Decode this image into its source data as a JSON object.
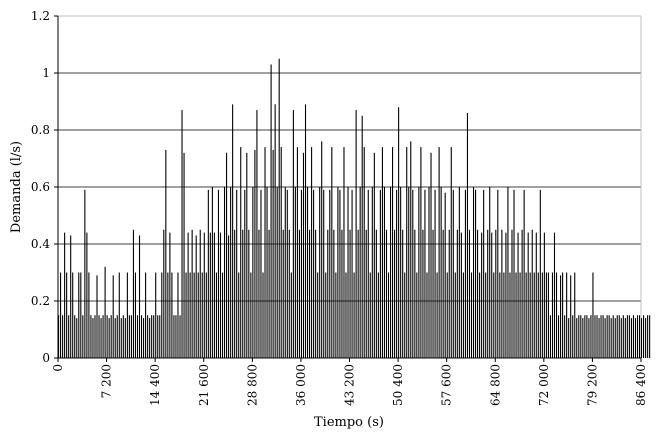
{
  "chart_data": {
    "type": "bar",
    "title": "",
    "xlabel": "Tiempo (s)",
    "ylabel": "Demanda (l/s)",
    "xlim": [
      0,
      86400
    ],
    "ylim": [
      0,
      1.2
    ],
    "grid": "horizontal",
    "x_ticks": [
      0,
      7200,
      14400,
      21600,
      28800,
      36000,
      43200,
      50400,
      57600,
      64800,
      72000,
      79200,
      86400
    ],
    "x_tick_labels": [
      "0",
      "7 200",
      "14 400",
      "21 600",
      "28 800",
      "36 000",
      "43 200",
      "50 400",
      "57 600",
      "64 800",
      "72 000",
      "79 200",
      "86 400"
    ],
    "y_ticks": [
      0,
      0.2,
      0.4,
      0.6,
      0.8,
      1,
      1.2
    ],
    "y_tick_labels": [
      "0",
      "0.2",
      "0.4",
      "0.6",
      "0.8",
      "1",
      "1.2"
    ],
    "bar_color": "#000000",
    "x_step_s": 300,
    "values": [
      0.15,
      0.3,
      0.15,
      0.44,
      0.3,
      0.15,
      0.43,
      0.3,
      0.15,
      0.14,
      0.3,
      0.3,
      0.15,
      0.59,
      0.44,
      0.3,
      0.15,
      0.14,
      0.15,
      0.29,
      0.15,
      0.14,
      0.15,
      0.32,
      0.15,
      0.14,
      0.15,
      0.29,
      0.14,
      0.15,
      0.3,
      0.14,
      0.15,
      0.14,
      0.3,
      0.15,
      0.15,
      0.45,
      0.3,
      0.15,
      0.43,
      0.15,
      0.14,
      0.3,
      0.15,
      0.14,
      0.15,
      0.15,
      0.3,
      0.15,
      0.15,
      0.3,
      0.45,
      0.73,
      0.3,
      0.44,
      0.3,
      0.15,
      0.15,
      0.3,
      0.15,
      0.87,
      0.72,
      0.3,
      0.44,
      0.3,
      0.45,
      0.3,
      0.43,
      0.3,
      0.45,
      0.3,
      0.44,
      0.3,
      0.59,
      0.44,
      0.6,
      0.44,
      0.3,
      0.59,
      0.44,
      0.3,
      0.6,
      0.72,
      0.43,
      0.6,
      0.89,
      0.45,
      0.59,
      0.3,
      0.74,
      0.45,
      0.59,
      0.72,
      0.45,
      0.3,
      0.6,
      0.73,
      0.87,
      0.45,
      0.59,
      0.3,
      0.74,
      0.6,
      0.45,
      1.03,
      0.73,
      0.89,
      0.6,
      1.05,
      0.74,
      0.45,
      0.6,
      0.59,
      0.45,
      0.3,
      0.87,
      0.6,
      0.74,
      0.45,
      0.59,
      0.72,
      0.89,
      0.6,
      0.45,
      0.74,
      0.59,
      0.45,
      0.3,
      0.6,
      0.76,
      0.59,
      0.3,
      0.45,
      0.59,
      0.74,
      0.45,
      0.3,
      0.6,
      0.59,
      0.45,
      0.74,
      0.3,
      0.6,
      0.45,
      0.59,
      0.3,
      0.87,
      0.45,
      0.6,
      0.85,
      0.74,
      0.45,
      0.59,
      0.3,
      0.6,
      0.72,
      0.45,
      0.3,
      0.59,
      0.74,
      0.6,
      0.45,
      0.3,
      0.6,
      0.74,
      0.45,
      0.59,
      0.88,
      0.6,
      0.45,
      0.3,
      0.74,
      0.6,
      0.76,
      0.59,
      0.45,
      0.3,
      0.6,
      0.74,
      0.45,
      0.59,
      0.3,
      0.6,
      0.72,
      0.45,
      0.59,
      0.3,
      0.74,
      0.6,
      0.45,
      0.58,
      0.3,
      0.45,
      0.74,
      0.59,
      0.3,
      0.45,
      0.6,
      0.44,
      0.3,
      0.59,
      0.86,
      0.45,
      0.3,
      0.6,
      0.59,
      0.45,
      0.3,
      0.44,
      0.59,
      0.3,
      0.45,
      0.6,
      0.44,
      0.3,
      0.45,
      0.59,
      0.3,
      0.45,
      0.3,
      0.44,
      0.6,
      0.3,
      0.45,
      0.59,
      0.3,
      0.44,
      0.3,
      0.45,
      0.59,
      0.3,
      0.44,
      0.3,
      0.45,
      0.3,
      0.44,
      0.3,
      0.59,
      0.3,
      0.44,
      0.3,
      0.3,
      0.15,
      0.3,
      0.44,
      0.3,
      0.15,
      0.29,
      0.3,
      0.15,
      0.3,
      0.14,
      0.29,
      0.15,
      0.3,
      0.14,
      0.15,
      0.15,
      0.14,
      0.15,
      0.15,
      0.14,
      0.15,
      0.3,
      0.15,
      0.15,
      0.14,
      0.15,
      0.15,
      0.14,
      0.15,
      0.15,
      0.14,
      0.15,
      0.14,
      0.15,
      0.15,
      0.14,
      0.15,
      0.14,
      0.15,
      0.15,
      0.14,
      0.15,
      0.14,
      0.15,
      0.15,
      0.14,
      0.15,
      0.14,
      0.15,
      0.15
    ]
  }
}
